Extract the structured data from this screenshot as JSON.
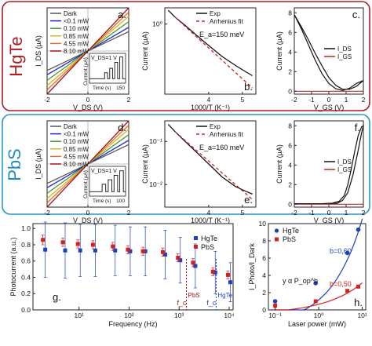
{
  "rows": [
    {
      "label": "HgTe",
      "label_color": "#b01c22",
      "border_color": "#b01c22"
    },
    {
      "label": "PbS",
      "label_color": "#1f8bbf",
      "border_color": "#2b95c8"
    }
  ],
  "chart_data": [
    {
      "id": "a",
      "panel_letter": "a.",
      "type": "line",
      "xlabel": "V_DS (V)",
      "ylabel": "I_DS (µA)",
      "xlim": [
        -2,
        2
      ],
      "ylim": [
        -1,
        1
      ],
      "xticks": [
        "-2",
        "0",
        "2"
      ],
      "yticks": [],
      "series": [
        {
          "name": "Dark",
          "color": "#555555",
          "x": [
            -2,
            2
          ],
          "y": [
            -0.45,
            0.45
          ]
        },
        {
          "name": "<0.1 mW",
          "color": "#2222cc",
          "x": [
            -2,
            2
          ],
          "y": [
            -0.55,
            0.55
          ]
        },
        {
          "name": "0.10 mW",
          "color": "#3a9a3a",
          "x": [
            -2,
            2
          ],
          "y": [
            -0.68,
            0.68
          ]
        },
        {
          "name": "0.85 mW",
          "color": "#e0b020",
          "x": [
            -2,
            2
          ],
          "y": [
            -0.8,
            0.8
          ]
        },
        {
          "name": "4.55 mW",
          "color": "#e07020",
          "x": [
            -2,
            2
          ],
          "y": [
            -0.9,
            0.9
          ]
        },
        {
          "name": "8.10 mW",
          "color": "#a0141e",
          "x": [
            -2,
            2
          ],
          "y": [
            -1,
            1
          ]
        }
      ],
      "inset": {
        "annotation": "V_DS=1 V",
        "xlabel": "Time (s)",
        "ylabel": "Current (µA)",
        "xtick_end": "150",
        "trace": [
          [
            0,
            0.15
          ],
          [
            0.42,
            0.15
          ],
          [
            0.42,
            0.35
          ],
          [
            0.5,
            0.35
          ],
          [
            0.5,
            0.15
          ],
          [
            0.56,
            0.15
          ],
          [
            0.56,
            0.5
          ],
          [
            0.64,
            0.5
          ],
          [
            0.64,
            0.15
          ],
          [
            0.7,
            0.15
          ],
          [
            0.7,
            0.7
          ],
          [
            0.78,
            0.7
          ],
          [
            0.78,
            0.15
          ],
          [
            0.84,
            0.15
          ],
          [
            0.84,
            0.88
          ],
          [
            0.92,
            0.88
          ],
          [
            0.92,
            0.15
          ],
          [
            1,
            0.15
          ]
        ]
      }
    },
    {
      "id": "b",
      "panel_letter": "b.",
      "type": "line",
      "xlabel": "1000/T (K⁻¹)",
      "ylabel": "Current (µA)",
      "xlim": [
        2.7,
        5.4
      ],
      "ylim": [
        0.05,
        2.0
      ],
      "yscale": "log",
      "xticks": [
        "4",
        "5"
      ],
      "xtick_values": [
        4,
        5
      ],
      "ytick_labels": [
        "10⁰"
      ],
      "ytick_values": [
        1
      ],
      "annotation": "E_a=150 meV",
      "series": [
        {
          "name": "Exp",
          "color": "#111111",
          "dash": "",
          "x": [
            2.8,
            3.0,
            3.3,
            3.6,
            4.0,
            4.4,
            4.8,
            5.1,
            5.3
          ],
          "y": [
            1.8,
            1.35,
            0.95,
            0.65,
            0.4,
            0.25,
            0.17,
            0.13,
            0.11
          ]
        },
        {
          "name": "Arrhenius fit",
          "color": "#c0282e",
          "dash": "4,3",
          "x": [
            3.0,
            5.3
          ],
          "y": [
            1.35,
            0.065
          ]
        }
      ]
    },
    {
      "id": "c",
      "panel_letter": "c.",
      "type": "line",
      "xlabel": "V_GS (V)",
      "ylabel": "Current (µA)",
      "xlim": [
        -2,
        2
      ],
      "ylim": [
        -0.3,
        8.5
      ],
      "xticks": [
        "-2",
        "-1",
        "0",
        "1",
        "2"
      ],
      "xtick_values": [
        -2,
        -1,
        0,
        1,
        2
      ],
      "ytick_labels": [
        "0",
        "2",
        "4",
        "6",
        "8"
      ],
      "ytick_values": [
        0,
        2,
        4,
        6,
        8
      ],
      "series": [
        {
          "name": "I_DS",
          "color": "#111111",
          "x": [
            -2,
            -1.6,
            -1.2,
            -0.8,
            -0.4,
            0,
            0.4,
            0.8,
            1.2,
            1.6,
            2,
            1.6,
            1.2,
            0.8,
            0.4,
            0,
            -0.4,
            -0.8,
            -1.2,
            -1.6,
            -2
          ],
          "y": [
            7.8,
            6.4,
            4.8,
            3.2,
            1.8,
            0.8,
            0.25,
            0.08,
            0.3,
            0.8,
            1.1,
            0.5,
            0.2,
            0.2,
            0.6,
            1.4,
            2.6,
            3.9,
            5.3,
            6.6,
            7.8
          ]
        },
        {
          "name": "I_GS",
          "color": "#c0282e",
          "x": [
            -2,
            2
          ],
          "y": [
            0,
            0
          ]
        }
      ]
    },
    {
      "id": "d",
      "panel_letter": "d.",
      "type": "line",
      "xlabel": "V_DS (V)",
      "ylabel": "I_DS (µA)",
      "xlim": [
        -2,
        2
      ],
      "ylim": [
        -1,
        1
      ],
      "xticks": [
        "-2",
        "0",
        "2"
      ],
      "yticks": [],
      "series": [
        {
          "name": "Dark",
          "color": "#555555",
          "x": [
            -2,
            2
          ],
          "y": [
            -0.45,
            0.45
          ]
        },
        {
          "name": "<0.1 mW",
          "color": "#2222cc",
          "x": [
            -2,
            2
          ],
          "y": [
            -0.55,
            0.55
          ]
        },
        {
          "name": "0.10 mW",
          "color": "#3a9a3a",
          "x": [
            -2,
            2
          ],
          "y": [
            -0.68,
            0.68
          ]
        },
        {
          "name": "0.85 mW",
          "color": "#e0b020",
          "x": [
            -2,
            2
          ],
          "y": [
            -0.8,
            0.8
          ]
        },
        {
          "name": "4.55 mW",
          "color": "#e07020",
          "x": [
            -2,
            2
          ],
          "y": [
            -0.9,
            0.9
          ]
        },
        {
          "name": "8.10 mW",
          "color": "#a0141e",
          "x": [
            -2,
            2
          ],
          "y": [
            -1,
            1
          ]
        }
      ],
      "inset": {
        "annotation": "V_DS=1 V",
        "xlabel": "Time (s)",
        "ylabel": "Current (µA)",
        "xtick_end": "100",
        "trace": [
          [
            0,
            0.15
          ],
          [
            0.35,
            0.15
          ],
          [
            0.35,
            0.4
          ],
          [
            0.45,
            0.4
          ],
          [
            0.45,
            0.15
          ],
          [
            0.52,
            0.15
          ],
          [
            0.52,
            0.55
          ],
          [
            0.62,
            0.55
          ],
          [
            0.62,
            0.15
          ],
          [
            0.68,
            0.15
          ],
          [
            0.68,
            0.7
          ],
          [
            0.78,
            0.7
          ],
          [
            0.78,
            0.15
          ],
          [
            0.84,
            0.15
          ],
          [
            0.84,
            0.85
          ],
          [
            0.94,
            0.85
          ],
          [
            0.94,
            0.15
          ],
          [
            1,
            0.15
          ]
        ]
      }
    },
    {
      "id": "e",
      "panel_letter": "e.",
      "type": "line",
      "xlabel": "1000/T (K⁻¹)",
      "ylabel": "Current (µA)",
      "xlim": [
        2.7,
        5.4
      ],
      "ylim": [
        0.003,
        0.3
      ],
      "yscale": "log",
      "xticks": [
        "4",
        "5"
      ],
      "xtick_values": [
        4,
        5
      ],
      "ytick_labels": [
        "10⁻¹",
        "10⁻²"
      ],
      "ytick_values": [
        0.1,
        0.01
      ],
      "annotation": "E_a=160 meV",
      "series": [
        {
          "name": "Exp",
          "color": "#111111",
          "dash": "",
          "x": [
            2.8,
            3.0,
            3.3,
            3.6,
            4.0,
            4.4,
            4.8,
            5.1,
            5.3
          ],
          "y": [
            0.25,
            0.17,
            0.1,
            0.06,
            0.03,
            0.015,
            0.009,
            0.007,
            0.006
          ]
        },
        {
          "name": "Arrhenius fit",
          "color": "#c0282e",
          "dash": "4,3",
          "x": [
            3.0,
            5.3
          ],
          "y": [
            0.17,
            0.0045
          ]
        }
      ]
    },
    {
      "id": "f",
      "panel_letter": "f.",
      "type": "line",
      "xlabel": "V_GS (V)",
      "ylabel": "Current (µA)",
      "xlim": [
        -2,
        2
      ],
      "ylim": [
        -0.3,
        8.5
      ],
      "xticks": [
        "-2",
        "-1",
        "0",
        "1",
        "2"
      ],
      "xtick_values": [
        -2,
        -1,
        0,
        1,
        2
      ],
      "ytick_labels": [
        "0",
        "2",
        "4",
        "6",
        "8"
      ],
      "ytick_values": [
        0,
        2,
        4,
        6,
        8
      ],
      "series": [
        {
          "name": "I_DS",
          "color": "#111111",
          "x": [
            -2,
            -1.5,
            -1,
            -0.5,
            0,
            0.5,
            0.8,
            1.1,
            1.4,
            1.7,
            1.9,
            2,
            1.9,
            1.7,
            1.5,
            1.3,
            1.1,
            0.9,
            0.6,
            0.2,
            -0.4,
            -1,
            -1.5,
            -2
          ],
          "y": [
            0.05,
            0.05,
            0.05,
            0.05,
            0.05,
            0.1,
            0.4,
            1.2,
            3.0,
            5.5,
            7.3,
            8.0,
            7.9,
            7.0,
            5.4,
            3.6,
            2.0,
            0.9,
            0.3,
            0.1,
            0.05,
            0.05,
            0.05,
            0.05
          ]
        },
        {
          "name": "I_GS",
          "color": "#c0282e",
          "x": [
            -2,
            2
          ],
          "y": [
            0,
            0
          ]
        }
      ]
    },
    {
      "id": "g",
      "panel_letter": "g.",
      "type": "scatter",
      "xlabel": "Frequency (Hz)",
      "ylabel": "Photocurrent (a.u.)",
      "xscale": "log",
      "xlim": [
        1.2,
        12000
      ],
      "ylim": [
        0,
        1.06
      ],
      "xtick_labels": [
        "10¹",
        "10²",
        "10³",
        "10⁴"
      ],
      "xtick_values": [
        10,
        100,
        1000,
        10000
      ],
      "ytick_labels": [
        "0.0",
        "0.2",
        "0.4",
        "0.6",
        "0.8",
        "1.0"
      ],
      "ytick_values": [
        0,
        0.2,
        0.4,
        0.6,
        0.8,
        1.0
      ],
      "cutoffs": [
        {
          "label": "PbS",
          "x": 1400,
          "color": "#a0141e"
        },
        {
          "label": "HgTe",
          "x": 5500,
          "color": "#1f3fbf"
        }
      ],
      "cutoff_symbol": "f_c",
      "series": [
        {
          "name": "HgTe",
          "color": "#1f3fbf",
          "marker": "square",
          "x": [
            2,
            5,
            10,
            20,
            50,
            100,
            200,
            500,
            1000,
            2000,
            5000,
            10000
          ],
          "y": [
            0.74,
            0.73,
            0.73,
            0.73,
            0.73,
            0.72,
            0.72,
            0.68,
            0.61,
            0.54,
            0.46,
            0.34
          ],
          "err": [
            0.34,
            0.34,
            0.32,
            0.32,
            0.31,
            0.3,
            0.3,
            0.3,
            0.28,
            0.27,
            0.26,
            0.24
          ]
        },
        {
          "name": "PbS",
          "color": "#d42020",
          "marker": "square",
          "x": [
            2,
            5,
            10,
            20,
            50,
            100,
            200,
            500,
            1000,
            2000,
            5000,
            10000
          ],
          "y": [
            0.86,
            0.83,
            0.81,
            0.8,
            0.78,
            0.74,
            0.72,
            0.71,
            0.64,
            0.58,
            0.47,
            0.43
          ],
          "err": [
            0.06,
            0.05,
            0.05,
            0.05,
            0.05,
            0.05,
            0.05,
            0.05,
            0.05,
            0.05,
            0.05,
            0.05
          ]
        }
      ]
    },
    {
      "id": "h",
      "panel_letter": "h.",
      "type": "scatter",
      "xlabel": "Laser power (mW)",
      "ylabel": "I_Photo/I_Dark",
      "xscale": "log",
      "xlim": [
        0.07,
        12
      ],
      "ylim": [
        0,
        10
      ],
      "xtick_labels": [
        "10⁻¹",
        "10⁰",
        "10¹"
      ],
      "xtick_values": [
        0.1,
        1,
        10
      ],
      "ytick_labels": [
        "0",
        "2",
        "4",
        "6",
        "8",
        "10"
      ],
      "ytick_values": [
        0,
        2,
        4,
        6,
        8,
        10
      ],
      "annotation": "y α P_op^b",
      "series": [
        {
          "name": "HgTe",
          "color": "#1f3fbf",
          "marker": "circle",
          "x": [
            0.1,
            0.85,
            4.55,
            8.1
          ],
          "y": [
            1.0,
            3.1,
            6.6,
            9.3
          ],
          "fit": {
            "label": "b=0,60",
            "color": "#1f3fbf",
            "amp": 3.15,
            "b": 0.6,
            "offset": -2.0
          }
        },
        {
          "name": "PbS",
          "color": "#d42020",
          "marker": "square",
          "x": [
            0.1,
            0.85,
            4.55,
            8.1
          ],
          "y": [
            0.5,
            1.0,
            2.2,
            2.7
          ],
          "fit": {
            "label": "b=0,50",
            "color": "#d42020",
            "amp": 1.15,
            "b": 0.5,
            "offset": -0.5
          }
        }
      ]
    }
  ]
}
